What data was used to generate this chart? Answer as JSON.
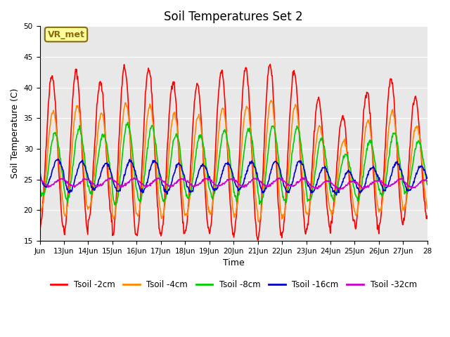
{
  "title": "Soil Temperatures Set 2",
  "xlabel": "Time",
  "ylabel": "Soil Temperature (C)",
  "ylim": [
    15,
    50
  ],
  "yticks": [
    15,
    20,
    25,
    30,
    35,
    40,
    45,
    50
  ],
  "bg_color": "#e8e8e8",
  "fig_color": "#ffffff",
  "annotation_text": "VR_met",
  "annotation_bg": "#ffff99",
  "annotation_border": "#8b6914",
  "series_colors": {
    "Tsoil -2cm": "#ff0000",
    "Tsoil -4cm": "#ff8800",
    "Tsoil -8cm": "#00cc00",
    "Tsoil -16cm": "#0000cc",
    "Tsoil -32cm": "#cc00cc"
  },
  "n_days": 16,
  "points_per_day": 48,
  "x_tick_labels": [
    "Jun",
    "13Jun",
    "14Jun",
    "15Jun",
    "16Jun",
    "17Jun",
    "18Jun",
    "19Jun",
    "20Jun",
    "21Jun",
    "22Jun",
    "23Jun",
    "24Jun",
    "25Jun",
    "26Jun",
    "27Jun",
    "28"
  ],
  "amp_factors_2cm": [
    1.0,
    1.05,
    0.9,
    1.1,
    1.08,
    1.0,
    0.95,
    1.05,
    1.1,
    1.15,
    1.05,
    0.85,
    0.7,
    0.9,
    0.95,
    0.8
  ],
  "mean_shifts_2cm": [
    0,
    0,
    0,
    0,
    0,
    -1,
    -1,
    0,
    0,
    0,
    0,
    -2,
    -3,
    -1.5,
    0,
    -1
  ],
  "amp_factors_4cm": [
    0.9,
    1.0,
    0.85,
    1.05,
    1.0,
    0.95,
    0.9,
    0.95,
    1.0,
    1.1,
    1.0,
    0.8,
    0.65,
    0.85,
    0.9,
    0.75
  ],
  "mean_shifts_4cm": [
    0,
    0,
    0,
    0,
    0,
    -0.8,
    -0.8,
    0,
    0,
    0,
    0,
    -1.5,
    -2.5,
    -1.2,
    0,
    -1
  ],
  "amp_factors_8cm": [
    0.85,
    0.95,
    0.8,
    1.1,
    1.0,
    0.9,
    0.85,
    0.9,
    0.95,
    1.05,
    1.0,
    0.85,
    0.6,
    0.8,
    0.85,
    0.7
  ],
  "mean_shifts_8cm": [
    0,
    0,
    0,
    0,
    0,
    -0.5,
    -0.5,
    0,
    0,
    0,
    0,
    -1.0,
    -2.0,
    -1.0,
    0,
    -0.5
  ],
  "amp_factors_16cm": [
    0.9,
    1.0,
    0.85,
    1.0,
    1.0,
    0.9,
    0.85,
    0.9,
    0.9,
    1.0,
    1.0,
    0.8,
    0.7,
    0.8,
    0.9,
    0.8
  ],
  "mean_shifts_16cm": [
    0.5,
    0,
    0,
    0,
    0,
    -0.3,
    -0.3,
    0,
    0,
    0,
    0,
    -0.5,
    -1.0,
    -0.5,
    0,
    -0.3
  ],
  "mean_shifts_32cm": [
    0,
    0,
    0,
    0,
    0,
    0,
    0,
    0,
    0,
    0,
    0,
    -0.3,
    -0.5,
    -0.3,
    0,
    -0.2
  ]
}
